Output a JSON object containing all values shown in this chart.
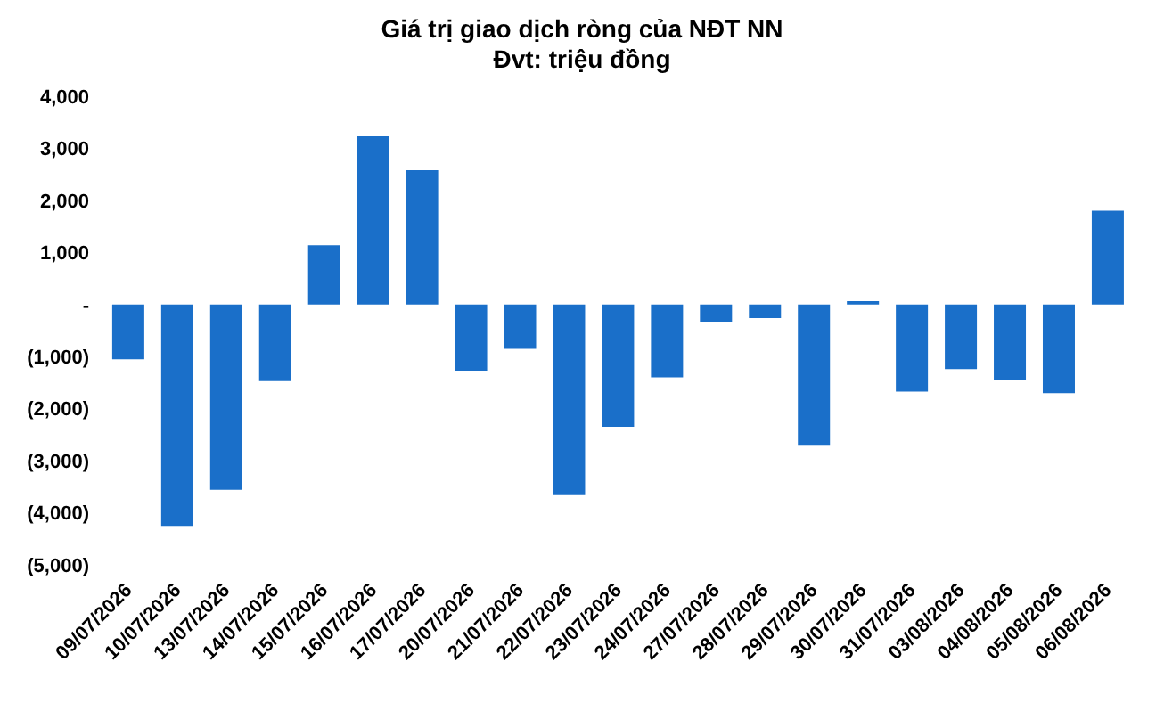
{
  "chart_data": {
    "type": "bar",
    "title": "Giá trị giao dịch ròng của NĐT NN",
    "subtitle": "Đvt: triệu đồng",
    "categories": [
      "09/07/2026",
      "10/07/2026",
      "13/07/2026",
      "14/07/2026",
      "15/07/2026",
      "16/07/2026",
      "17/07/2026",
      "20/07/2026",
      "21/07/2026",
      "22/07/2026",
      "23/07/2026",
      "24/07/2026",
      "27/07/2026",
      "28/07/2026",
      "29/07/2026",
      "30/07/2026",
      "31/07/2026",
      "03/08/2026",
      "04/08/2026",
      "05/08/2026",
      "06/08/2026"
    ],
    "values": [
      -1050,
      -4250,
      -3560,
      -1470,
      1140,
      3230,
      2580,
      -1270,
      -850,
      -3660,
      -2350,
      -1400,
      -330,
      -260,
      -2710,
      65,
      -1670,
      -1240,
      -1440,
      -1700,
      1800
    ],
    "color": "#1a6fc9",
    "ylim": [
      -5000,
      4000
    ],
    "yticks": [
      {
        "value": -5000,
        "label": "(5,000)"
      },
      {
        "value": -4000,
        "label": "(4,000)"
      },
      {
        "value": -3000,
        "label": "(3,000)"
      },
      {
        "value": -2000,
        "label": "(2,000)"
      },
      {
        "value": -1000,
        "label": "(1,000)"
      },
      {
        "value": 0,
        "label": "-"
      },
      {
        "value": 1000,
        "label": "1,000"
      },
      {
        "value": 2000,
        "label": "2,000"
      },
      {
        "value": 3000,
        "label": "3,000"
      },
      {
        "value": 4000,
        "label": "4,000"
      }
    ],
    "grid": false,
    "legend": false
  }
}
